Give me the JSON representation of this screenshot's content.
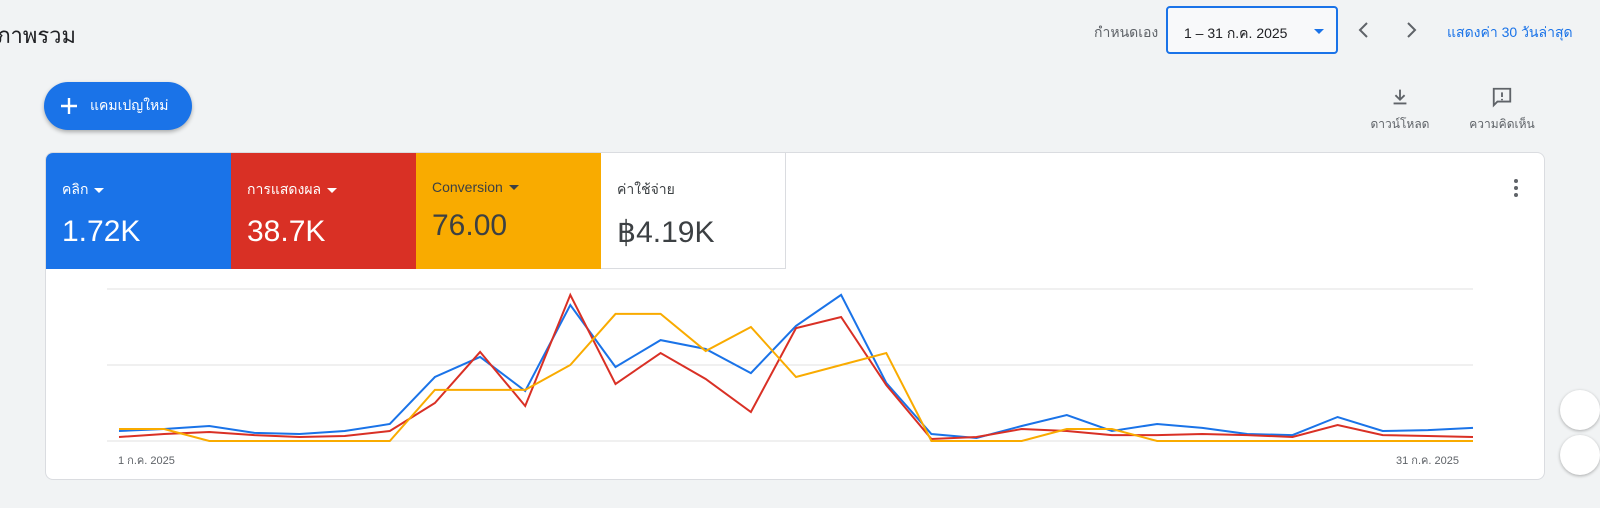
{
  "header": {
    "title": "ภาพรวม",
    "custom_label": "กำหนดเอง",
    "date_range": "1 – 31 ก.ค. 2025",
    "last30_link": "แสดงค่า 30 วันล่าสุด"
  },
  "actions": {
    "new_campaign": "แคมเปญใหม่",
    "download": "ดาวน์โหลด",
    "feedback": "ความคิดเห็น"
  },
  "metrics": [
    {
      "label": "คลิก",
      "value": "1.72K",
      "color": "#1a73e8"
    },
    {
      "label": "การแสดงผล",
      "value": "38.7K",
      "color": "#d93025"
    },
    {
      "label": "Conversion",
      "value": "76.00",
      "color": "#f9ab00"
    },
    {
      "label": "ค่าใช้จ่าย",
      "value": "฿4.19K",
      "color": "#ffffff"
    }
  ],
  "chart_data": {
    "type": "line",
    "x_start_label": "1 ก.ค. 2025",
    "x_end_label": "31 ก.ค. 2025",
    "days": 31,
    "ylim": [
      0,
      100
    ],
    "grid": true,
    "series": [
      {
        "name": "คลิก",
        "color": "#1a73e8",
        "values": [
          6.6,
          7.9,
          9.9,
          5.3,
          4.6,
          6.6,
          11.2,
          42.1,
          55.3,
          32.9,
          89.5,
          48.7,
          66.4,
          60.5,
          44.7,
          75.7,
          96.1,
          38.2,
          4.6,
          2.0,
          9.9,
          17.1,
          6.6,
          11.2,
          8.6,
          4.6,
          3.9,
          15.8,
          6.6,
          7.2,
          8.6
        ]
      },
      {
        "name": "การแสดงผล",
        "color": "#d93025",
        "values": [
          2.6,
          4.6,
          5.9,
          3.9,
          2.6,
          3.3,
          6.6,
          25,
          58.6,
          23,
          96.1,
          37.5,
          57.9,
          40.8,
          19.1,
          74.3,
          81.6,
          36.8,
          1.3,
          2.6,
          7.9,
          6.6,
          3.9,
          3.9,
          4.6,
          3.9,
          2.6,
          10.5,
          3.9,
          3.3,
          2.6
        ]
      },
      {
        "name": "Conversion",
        "color": "#f9ab00",
        "values": [
          7.9,
          7.9,
          0,
          0,
          0,
          0,
          0,
          33.6,
          33.6,
          33.6,
          50,
          83.6,
          83.6,
          59.2,
          75,
          42.1,
          50,
          57.9,
          0,
          0,
          0,
          7.9,
          7.9,
          0,
          0,
          0,
          0,
          0,
          0,
          0,
          0
        ]
      }
    ]
  }
}
